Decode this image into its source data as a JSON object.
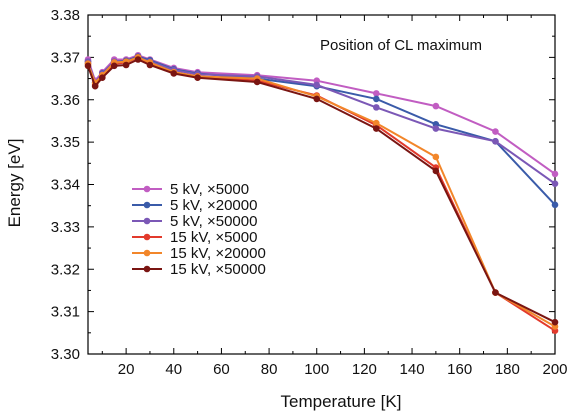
{
  "chart_data": {
    "type": "line",
    "title": "",
    "annotation": "Position of CL maximum",
    "xlabel": "Temperature [K]",
    "ylabel": "Energy [eV]",
    "xlim": [
      4,
      200
    ],
    "ylim": [
      3.3,
      3.38
    ],
    "xticks": [
      20,
      40,
      60,
      80,
      100,
      120,
      140,
      160,
      180,
      200
    ],
    "yticks": [
      3.3,
      3.31,
      3.32,
      3.33,
      3.34,
      3.35,
      3.36,
      3.37,
      3.38
    ],
    "ytick_labels": [
      "3.30",
      "3.31",
      "3.32",
      "3.33",
      "3.34",
      "3.35",
      "3.36",
      "3.37",
      "3.38"
    ],
    "grid": false,
    "legend_position": "lower-left",
    "series": [
      {
        "name": "5 kV, ×5000",
        "color": "#c15dc2",
        "x": [
          4,
          7,
          10,
          15,
          20,
          25,
          30,
          40,
          50,
          75,
          100,
          125,
          150,
          175,
          200
        ],
        "y": [
          3.3695,
          3.3645,
          3.3665,
          3.3695,
          3.3695,
          3.3705,
          3.3695,
          3.3675,
          3.3665,
          3.3658,
          3.3645,
          3.3615,
          3.3585,
          3.3525,
          3.3425
        ]
      },
      {
        "name": "5 kV, ×20000",
        "color": "#3a5ba9",
        "x": [
          4,
          7,
          10,
          15,
          20,
          25,
          30,
          40,
          50,
          75,
          100,
          125,
          150,
          175,
          200
        ],
        "y": [
          3.369,
          3.364,
          3.3662,
          3.369,
          3.3692,
          3.3702,
          3.3693,
          3.3672,
          3.3662,
          3.365,
          3.3632,
          3.3602,
          3.3542,
          3.3502,
          3.3352
        ]
      },
      {
        "name": "5 kV, ×50000",
        "color": "#7b58b6",
        "x": [
          4,
          7,
          10,
          15,
          20,
          25,
          30,
          40,
          50,
          75,
          100,
          125,
          150,
          175,
          200
        ],
        "y": [
          3.369,
          3.364,
          3.366,
          3.369,
          3.369,
          3.37,
          3.369,
          3.367,
          3.366,
          3.3655,
          3.3635,
          3.3582,
          3.3532,
          3.3502,
          3.3402
        ]
      },
      {
        "name": "15 kV, ×5000",
        "color": "#e23a2c",
        "x": [
          4,
          7,
          10,
          15,
          20,
          25,
          30,
          40,
          50,
          75,
          100,
          125,
          150,
          175,
          200
        ],
        "y": [
          3.3685,
          3.3635,
          3.3655,
          3.3685,
          3.3688,
          3.37,
          3.3685,
          3.3665,
          3.3655,
          3.3645,
          3.361,
          3.354,
          3.344,
          3.3145,
          3.3055
        ]
      },
      {
        "name": "15 kV, ×20000",
        "color": "#f2862a",
        "x": [
          4,
          7,
          10,
          15,
          20,
          25,
          30,
          40,
          50,
          75,
          100,
          125,
          150,
          175,
          200
        ],
        "y": [
          3.3685,
          3.364,
          3.3658,
          3.3688,
          3.369,
          3.37,
          3.3688,
          3.3665,
          3.3655,
          3.365,
          3.3608,
          3.3545,
          3.3465,
          3.3145,
          3.3065
        ]
      },
      {
        "name": "15 kV, ×50000",
        "color": "#7a1512",
        "x": [
          4,
          7,
          10,
          15,
          20,
          25,
          30,
          40,
          50,
          75,
          100,
          125,
          150,
          175,
          200
        ],
        "y": [
          3.368,
          3.3632,
          3.3652,
          3.368,
          3.3682,
          3.3695,
          3.3682,
          3.3662,
          3.3652,
          3.3642,
          3.3602,
          3.3532,
          3.3432,
          3.3145,
          3.3075
        ]
      }
    ]
  }
}
